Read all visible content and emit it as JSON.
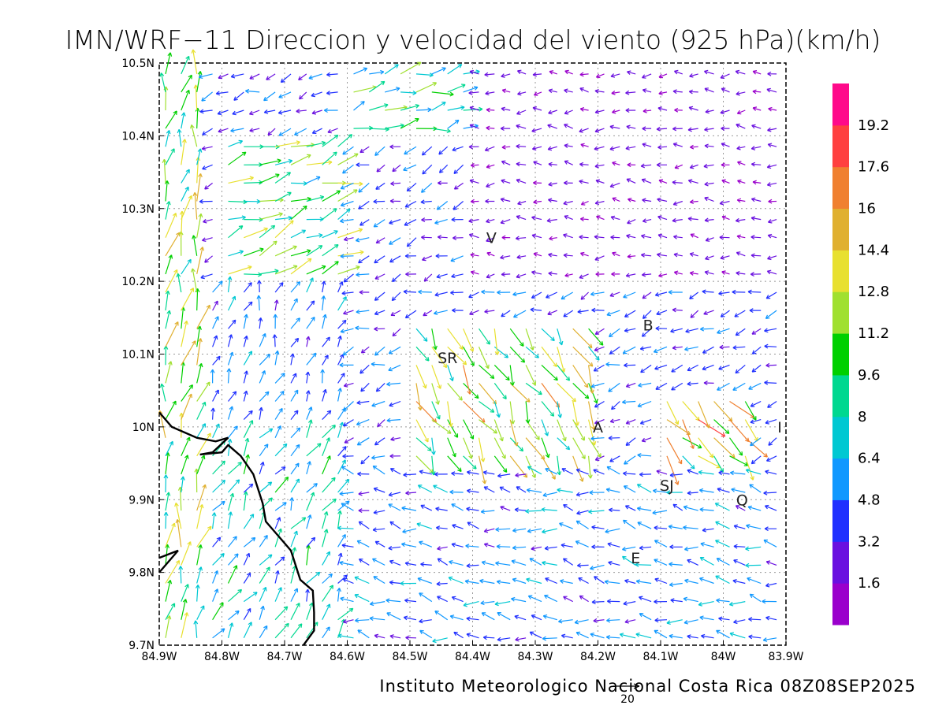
{
  "title": "IMN/WRF−11 Direccion y velocidad del viento (925 hPa)(km/h)",
  "footer": "Instituto Meteorologico Nacional Costa Rica 08Z08SEP2025",
  "reference_vector": {
    "label": "20"
  },
  "map": {
    "lon_min": -84.9,
    "lon_max": -83.9,
    "lat_min": 9.7,
    "lat_max": 10.5,
    "grid": true,
    "x_tick_labels": [
      "84.9W",
      "84.8W",
      "84.7W",
      "84.6W",
      "84.5W",
      "84.4W",
      "84.3W",
      "84.2W",
      "84.1W",
      "84W",
      "83.9W"
    ],
    "y_tick_labels": [
      "9.7N",
      "9.8N",
      "9.9N",
      "10N",
      "10.1N",
      "10.2N",
      "10.3N",
      "10.4N",
      "10.5N"
    ],
    "coastline": [
      [
        -84.9,
        10.02
      ],
      [
        -84.88,
        10.0
      ],
      [
        -84.84,
        9.985
      ],
      [
        -84.81,
        9.98
      ],
      [
        -84.79,
        9.985
      ],
      [
        -84.815,
        9.965
      ],
      [
        -84.835,
        9.962
      ],
      [
        -84.8,
        9.965
      ],
      [
        -84.79,
        9.975
      ],
      [
        -84.77,
        9.96
      ],
      [
        -84.75,
        9.935
      ],
      [
        -84.735,
        9.895
      ],
      [
        -84.73,
        9.87
      ],
      [
        -84.71,
        9.85
      ],
      [
        -84.69,
        9.83
      ],
      [
        -84.675,
        9.79
      ],
      [
        -84.655,
        9.775
      ],
      [
        -84.653,
        9.745
      ],
      [
        -84.653,
        9.72
      ],
      [
        -84.67,
        9.7
      ]
    ],
    "coastline_small": [
      [
        -84.9,
        9.82
      ],
      [
        -84.87,
        9.83
      ],
      [
        -84.9,
        9.8
      ]
    ],
    "places": [
      {
        "label": "V",
        "lon": -84.37,
        "lat": 10.26
      },
      {
        "label": "B",
        "lon": -84.12,
        "lat": 10.14
      },
      {
        "label": "SR",
        "lon": -84.44,
        "lat": 10.095
      },
      {
        "label": "A",
        "lon": -84.2,
        "lat": 10.0
      },
      {
        "label": "I",
        "lon": -83.91,
        "lat": 10.0
      },
      {
        "label": "SJ",
        "lon": -84.09,
        "lat": 9.92
      },
      {
        "label": "Q",
        "lon": -83.97,
        "lat": 9.9
      },
      {
        "label": "E",
        "lon": -84.14,
        "lat": 9.82
      }
    ]
  },
  "colorbar": {
    "labels": [
      "1.6",
      "3.2",
      "4.8",
      "6.4",
      "8",
      "9.6",
      "11.2",
      "12.8",
      "14.4",
      "16",
      "17.6",
      "19.2"
    ],
    "colors": [
      "#9a00cc",
      "#6a10e0",
      "#2030ff",
      "#1098ff",
      "#00c8d2",
      "#00d890",
      "#00d000",
      "#a0e030",
      "#e8e030",
      "#e0b030",
      "#f08030",
      "#ff4040",
      "#ff0a8a"
    ]
  },
  "chart_data": {
    "type": "wind_vector_map",
    "units": "km/h",
    "level": "925 hPa",
    "valid_time": "08Z08SEP2025",
    "description_note": "",
    "regions": [
      {
        "lon": [
          -84.9,
          -84.82
        ],
        "lat": [
          9.7,
          10.5
        ],
        "dir_deg": 80,
        "speed": 11
      },
      {
        "lon": [
          -84.82,
          -84.6
        ],
        "lat": [
          9.7,
          10.0
        ],
        "dir_deg": 60,
        "speed": 7
      },
      {
        "lon": [
          -84.82,
          -84.6
        ],
        "lat": [
          10.0,
          10.2
        ],
        "dir_deg": 70,
        "speed": 5
      },
      {
        "lon": [
          -84.8,
          -84.6
        ],
        "lat": [
          10.2,
          10.4
        ],
        "dir_deg": 20,
        "speed": 10
      },
      {
        "lon": [
          -84.6,
          -84.4
        ],
        "lat": [
          10.4,
          10.5
        ],
        "dir_deg": 15,
        "speed": 9
      },
      {
        "lon": [
          -84.4,
          -83.9
        ],
        "lat": [
          10.2,
          10.5
        ],
        "dir_deg": 180,
        "speed": 2
      },
      {
        "lon": [
          -84.5,
          -84.2
        ],
        "lat": [
          9.95,
          10.15
        ],
        "dir_deg": -60,
        "speed": 12
      },
      {
        "lon": [
          -84.1,
          -83.95
        ],
        "lat": [
          9.85,
          10.05
        ],
        "dir_deg": -50,
        "speed": 13
      },
      {
        "lon": [
          -84.6,
          -83.9
        ],
        "lat": [
          9.7,
          9.95
        ],
        "dir_deg": 170,
        "speed": 5
      }
    ]
  }
}
